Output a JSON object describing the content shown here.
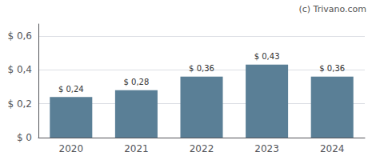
{
  "chart_data": {
    "type": "bar",
    "categories": [
      "2020",
      "2021",
      "2022",
      "2023",
      "2024"
    ],
    "values": [
      0.24,
      0.28,
      0.36,
      0.43,
      0.36
    ],
    "value_labels": [
      "$ 0,24",
      "$ 0,28",
      "$ 0,36",
      "$ 0,43",
      "$ 0,36"
    ],
    "data_labels": true,
    "color": "#5a7f96",
    "ylim": [
      0,
      0.67
    ],
    "yticks": [
      {
        "value": 0,
        "label": "$ 0"
      },
      {
        "value": 0.2,
        "label": "$ 0,2"
      },
      {
        "value": 0.4,
        "label": "$ 0,4"
      },
      {
        "value": 0.6,
        "label": "$ 0,6"
      }
    ],
    "grid": true,
    "annotations": [
      "(c) Trivano.com"
    ]
  }
}
